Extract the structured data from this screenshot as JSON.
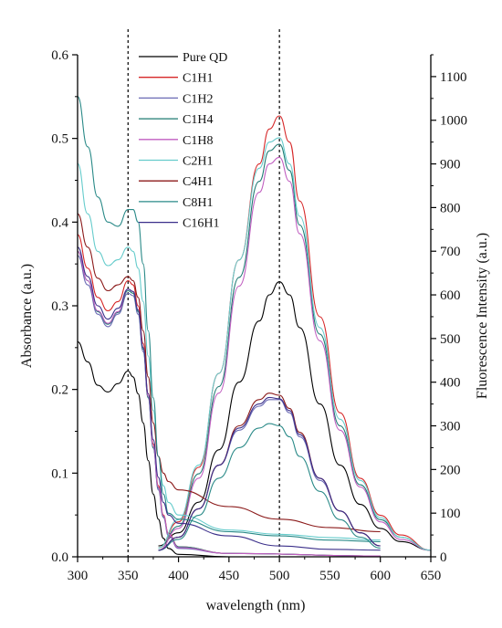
{
  "chart_data": {
    "type": "line",
    "title": "",
    "xlabel": "wavelength (nm)",
    "ylabel_left": "Absorbance (a.u.)",
    "ylabel_right": "Fluorescence Intensity (a.u.)",
    "xlim": [
      300,
      650
    ],
    "ylim_left": [
      0,
      0.6
    ],
    "ylim_right": [
      0,
      1150
    ],
    "x_ticks": [
      300,
      350,
      400,
      450,
      500,
      550,
      600,
      650
    ],
    "y_left_ticks": [
      "0.0",
      "0.1",
      "0.2",
      "0.3",
      "0.4",
      "0.5",
      "0.6"
    ],
    "y_right_ticks": [
      0,
      100,
      200,
      300,
      400,
      500,
      600,
      700,
      800,
      900,
      1000,
      1100
    ],
    "grid": false,
    "legend_position": "top-center",
    "reference_lines_x": [
      350,
      500
    ],
    "series": [
      {
        "name": "Pure QD",
        "color": "#000000",
        "absorbance": [
          [
            300,
            0.257
          ],
          [
            310,
            0.233
          ],
          [
            320,
            0.205
          ],
          [
            330,
            0.197
          ],
          [
            340,
            0.207
          ],
          [
            350,
            0.222
          ],
          [
            355,
            0.215
          ],
          [
            360,
            0.195
          ],
          [
            365,
            0.16
          ],
          [
            370,
            0.115
          ],
          [
            375,
            0.075
          ],
          [
            380,
            0.045
          ],
          [
            385,
            0.022
          ],
          [
            390,
            0.01
          ],
          [
            400,
            0.003
          ],
          [
            450,
            0.0
          ],
          [
            600,
            0.0
          ]
        ],
        "fluorescence": [
          [
            380,
            25
          ],
          [
            400,
            55
          ],
          [
            420,
            125
          ],
          [
            440,
            245
          ],
          [
            460,
            400
          ],
          [
            480,
            540
          ],
          [
            490,
            600
          ],
          [
            500,
            630
          ],
          [
            510,
            600
          ],
          [
            520,
            525
          ],
          [
            540,
            350
          ],
          [
            560,
            210
          ],
          [
            580,
            120
          ],
          [
            600,
            65
          ],
          [
            620,
            35
          ],
          [
            650,
            15
          ]
        ]
      },
      {
        "name": "C1H1",
        "color": "#d62728",
        "absorbance": [
          [
            300,
            0.385
          ],
          [
            310,
            0.345
          ],
          [
            320,
            0.31
          ],
          [
            330,
            0.294
          ],
          [
            340,
            0.305
          ],
          [
            350,
            0.33
          ],
          [
            355,
            0.325
          ],
          [
            360,
            0.3
          ],
          [
            365,
            0.255
          ],
          [
            370,
            0.195
          ],
          [
            375,
            0.135
          ],
          [
            380,
            0.085
          ],
          [
            385,
            0.05
          ],
          [
            390,
            0.028
          ],
          [
            400,
            0.012
          ],
          [
            450,
            0.004
          ],
          [
            600,
            0.001
          ]
        ],
        "fluorescence": [
          [
            380,
            20
          ],
          [
            400,
            80
          ],
          [
            420,
            205
          ],
          [
            440,
            420
          ],
          [
            460,
            680
          ],
          [
            480,
            900
          ],
          [
            490,
            980
          ],
          [
            500,
            1010
          ],
          [
            510,
            950
          ],
          [
            520,
            815
          ],
          [
            540,
            550
          ],
          [
            560,
            330
          ],
          [
            580,
            180
          ],
          [
            600,
            95
          ],
          [
            620,
            50
          ],
          [
            650,
            15
          ]
        ]
      },
      {
        "name": "C1H2",
        "color": "#6b6bb5",
        "absorbance": [
          [
            300,
            0.36
          ],
          [
            310,
            0.325
          ],
          [
            320,
            0.29
          ],
          [
            330,
            0.275
          ],
          [
            340,
            0.29
          ],
          [
            350,
            0.315
          ],
          [
            355,
            0.312
          ],
          [
            360,
            0.29
          ],
          [
            365,
            0.245
          ],
          [
            370,
            0.19
          ],
          [
            375,
            0.13
          ],
          [
            380,
            0.08
          ],
          [
            385,
            0.047
          ],
          [
            390,
            0.025
          ],
          [
            400,
            0.01
          ],
          [
            450,
            0.004
          ],
          [
            600,
            0.001
          ]
        ],
        "fluorescence": [
          [
            380,
            15
          ],
          [
            400,
            45
          ],
          [
            420,
            110
          ],
          [
            440,
            210
          ],
          [
            460,
            290
          ],
          [
            480,
            345
          ],
          [
            490,
            360
          ],
          [
            500,
            360
          ],
          [
            510,
            330
          ],
          [
            520,
            275
          ],
          [
            540,
            175
          ],
          [
            560,
            105
          ],
          [
            580,
            55
          ],
          [
            600,
            25
          ]
        ]
      },
      {
        "name": "C1H4",
        "color": "#1e7a72",
        "absorbance": [
          [
            300,
            0.365
          ],
          [
            310,
            0.33
          ],
          [
            320,
            0.293
          ],
          [
            330,
            0.278
          ],
          [
            340,
            0.292
          ],
          [
            350,
            0.318
          ],
          [
            355,
            0.315
          ],
          [
            360,
            0.293
          ],
          [
            365,
            0.248
          ],
          [
            370,
            0.19
          ],
          [
            375,
            0.13
          ],
          [
            380,
            0.082
          ],
          [
            385,
            0.048
          ],
          [
            390,
            0.027
          ],
          [
            400,
            0.012
          ],
          [
            450,
            0.004
          ],
          [
            600,
            0.001
          ]
        ],
        "fluorescence": [
          [
            380,
            15
          ],
          [
            400,
            70
          ],
          [
            420,
            190
          ],
          [
            440,
            390
          ],
          [
            460,
            640
          ],
          [
            480,
            860
          ],
          [
            490,
            930
          ],
          [
            500,
            945
          ],
          [
            510,
            885
          ],
          [
            520,
            760
          ],
          [
            540,
            510
          ],
          [
            560,
            300
          ],
          [
            580,
            165
          ],
          [
            600,
            85
          ],
          [
            620,
            45
          ],
          [
            650,
            15
          ]
        ]
      },
      {
        "name": "C1H8",
        "color": "#c05ec0",
        "absorbance": [
          [
            300,
            0.365
          ],
          [
            310,
            0.33
          ],
          [
            320,
            0.294
          ],
          [
            330,
            0.279
          ],
          [
            340,
            0.293
          ],
          [
            350,
            0.32
          ],
          [
            355,
            0.317
          ],
          [
            360,
            0.295
          ],
          [
            365,
            0.25
          ],
          [
            370,
            0.192
          ],
          [
            375,
            0.132
          ],
          [
            380,
            0.083
          ],
          [
            385,
            0.049
          ],
          [
            390,
            0.027
          ],
          [
            400,
            0.011
          ],
          [
            450,
            0.004
          ],
          [
            600,
            0.001
          ]
        ],
        "fluorescence": [
          [
            380,
            15
          ],
          [
            400,
            65
          ],
          [
            420,
            180
          ],
          [
            440,
            375
          ],
          [
            460,
            620
          ],
          [
            480,
            835
          ],
          [
            490,
            900
          ],
          [
            500,
            915
          ],
          [
            510,
            860
          ],
          [
            520,
            740
          ],
          [
            540,
            495
          ],
          [
            560,
            290
          ],
          [
            580,
            160
          ],
          [
            600,
            80
          ],
          [
            620,
            40
          ],
          [
            650,
            15
          ]
        ]
      },
      {
        "name": "C2H1",
        "color": "#66cccc",
        "absorbance": [
          [
            300,
            0.47
          ],
          [
            310,
            0.41
          ],
          [
            320,
            0.365
          ],
          [
            330,
            0.348
          ],
          [
            340,
            0.355
          ],
          [
            350,
            0.37
          ],
          [
            355,
            0.365
          ],
          [
            360,
            0.345
          ],
          [
            365,
            0.305
          ],
          [
            370,
            0.24
          ],
          [
            375,
            0.175
          ],
          [
            380,
            0.12
          ],
          [
            385,
            0.085
          ],
          [
            390,
            0.065
          ],
          [
            400,
            0.05
          ],
          [
            450,
            0.032
          ],
          [
            500,
            0.027
          ],
          [
            550,
            0.023
          ],
          [
            600,
            0.02
          ]
        ],
        "fluorescence": [
          [
            380,
            20
          ],
          [
            400,
            85
          ],
          [
            420,
            210
          ],
          [
            440,
            420
          ],
          [
            460,
            680
          ],
          [
            480,
            890
          ],
          [
            490,
            950
          ],
          [
            500,
            960
          ],
          [
            510,
            900
          ],
          [
            520,
            780
          ],
          [
            540,
            525
          ],
          [
            560,
            315
          ],
          [
            580,
            175
          ],
          [
            600,
            90
          ],
          [
            620,
            45
          ],
          [
            650,
            15
          ]
        ]
      },
      {
        "name": "C4H1",
        "color": "#8b1a1a",
        "absorbance": [
          [
            300,
            0.41
          ],
          [
            310,
            0.37
          ],
          [
            320,
            0.333
          ],
          [
            330,
            0.318
          ],
          [
            340,
            0.325
          ],
          [
            350,
            0.335
          ],
          [
            355,
            0.33
          ],
          [
            360,
            0.31
          ],
          [
            365,
            0.27
          ],
          [
            370,
            0.215
          ],
          [
            375,
            0.16
          ],
          [
            380,
            0.12
          ],
          [
            385,
            0.1
          ],
          [
            390,
            0.09
          ],
          [
            400,
            0.08
          ],
          [
            450,
            0.06
          ],
          [
            500,
            0.045
          ],
          [
            550,
            0.035
          ],
          [
            600,
            0.03
          ]
        ],
        "fluorescence": [
          [
            380,
            15
          ],
          [
            400,
            45
          ],
          [
            420,
            110
          ],
          [
            440,
            210
          ],
          [
            460,
            300
          ],
          [
            480,
            360
          ],
          [
            490,
            375
          ],
          [
            500,
            370
          ],
          [
            510,
            340
          ],
          [
            520,
            285
          ],
          [
            540,
            180
          ],
          [
            560,
            105
          ],
          [
            580,
            55
          ],
          [
            600,
            25
          ]
        ]
      },
      {
        "name": "C8H1",
        "color": "#2a8a88",
        "absorbance": [
          [
            300,
            0.55
          ],
          [
            310,
            0.49
          ],
          [
            320,
            0.43
          ],
          [
            330,
            0.4
          ],
          [
            340,
            0.395
          ],
          [
            350,
            0.415
          ],
          [
            355,
            0.415
          ],
          [
            360,
            0.4
          ],
          [
            365,
            0.35
          ],
          [
            370,
            0.27
          ],
          [
            375,
            0.19
          ],
          [
            380,
            0.12
          ],
          [
            385,
            0.075
          ],
          [
            390,
            0.052
          ],
          [
            400,
            0.045
          ],
          [
            450,
            0.03
          ],
          [
            500,
            0.025
          ],
          [
            550,
            0.02
          ],
          [
            600,
            0.018
          ]
        ],
        "fluorescence": [
          [
            380,
            15
          ],
          [
            400,
            40
          ],
          [
            420,
            95
          ],
          [
            440,
            180
          ],
          [
            460,
            250
          ],
          [
            480,
            295
          ],
          [
            490,
            305
          ],
          [
            500,
            300
          ],
          [
            510,
            275
          ],
          [
            520,
            230
          ],
          [
            540,
            150
          ],
          [
            560,
            85
          ],
          [
            580,
            45
          ],
          [
            600,
            20
          ]
        ]
      },
      {
        "name": "C16H1",
        "color": "#3b2f8a",
        "absorbance": [
          [
            300,
            0.37
          ],
          [
            310,
            0.335
          ],
          [
            320,
            0.3
          ],
          [
            330,
            0.284
          ],
          [
            340,
            0.297
          ],
          [
            350,
            0.32
          ],
          [
            355,
            0.317
          ],
          [
            360,
            0.295
          ],
          [
            365,
            0.25
          ],
          [
            370,
            0.195
          ],
          [
            375,
            0.14
          ],
          [
            380,
            0.095
          ],
          [
            385,
            0.065
          ],
          [
            390,
            0.05
          ],
          [
            400,
            0.04
          ],
          [
            450,
            0.025
          ],
          [
            500,
            0.013
          ],
          [
            550,
            0.009
          ],
          [
            600,
            0.008
          ]
        ],
        "fluorescence": [
          [
            380,
            15
          ],
          [
            400,
            45
          ],
          [
            420,
            110
          ],
          [
            440,
            210
          ],
          [
            460,
            295
          ],
          [
            480,
            350
          ],
          [
            490,
            365
          ],
          [
            500,
            362
          ],
          [
            510,
            335
          ],
          [
            520,
            280
          ],
          [
            540,
            180
          ],
          [
            560,
            105
          ],
          [
            580,
            55
          ],
          [
            600,
            25
          ]
        ]
      }
    ]
  }
}
